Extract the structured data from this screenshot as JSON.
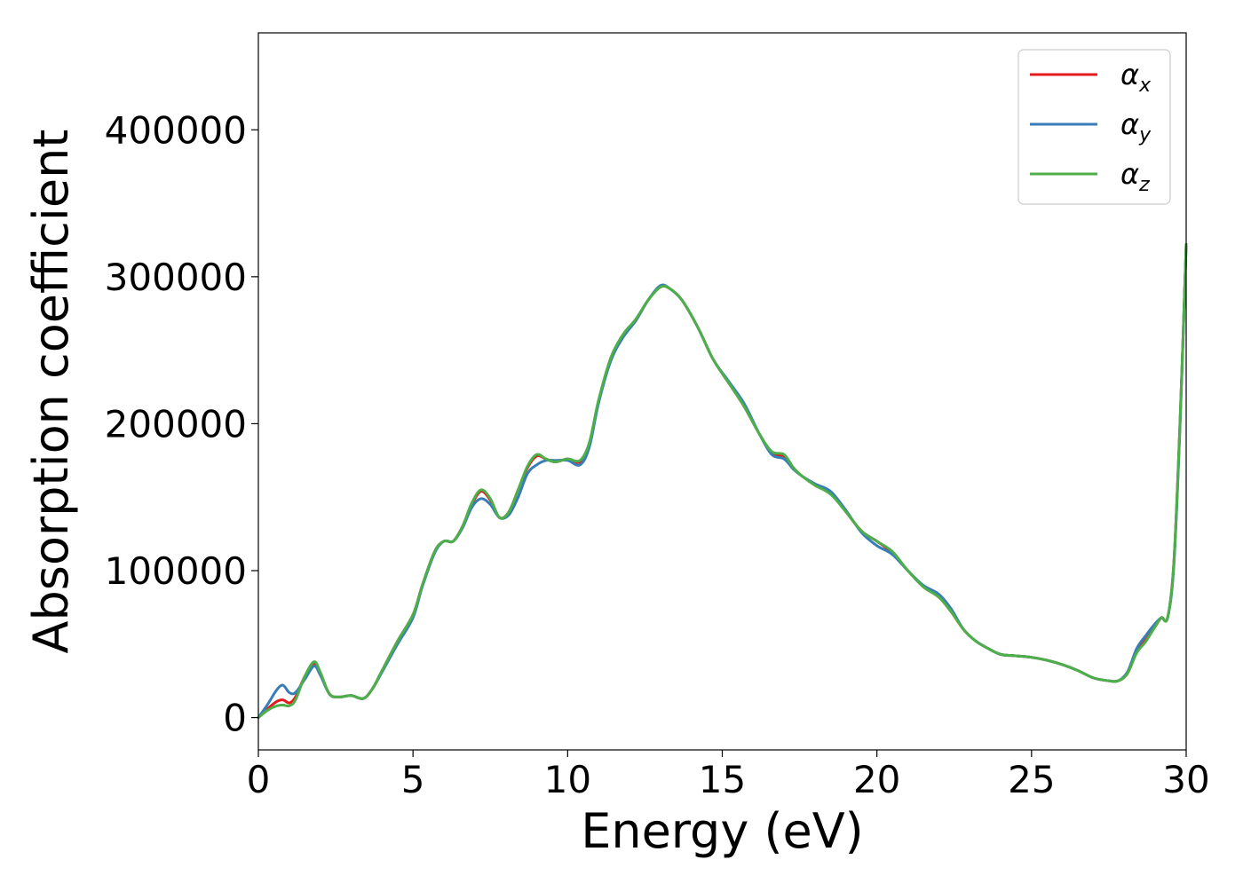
{
  "chart_data": {
    "type": "line",
    "title": "",
    "xlabel": "Energy (eV)",
    "ylabel": "Absorption coefficient",
    "xlim": [
      0,
      30
    ],
    "ylim": [
      -22000,
      466000
    ],
    "xticks": [
      0,
      5,
      10,
      15,
      20,
      25,
      30
    ],
    "xtick_labels": [
      "0",
      "5",
      "10",
      "15",
      "20",
      "25",
      "30"
    ],
    "yticks": [
      0,
      100000,
      200000,
      300000,
      400000
    ],
    "ytick_labels": [
      "0",
      "100000",
      "200000",
      "300000",
      "400000"
    ],
    "grid": false,
    "legend_position": "top-right",
    "series": [
      {
        "name": "α",
        "subscript": "x",
        "color": "#e41a1c",
        "x": [
          0,
          0.3,
          0.6,
          0.8,
          1.0,
          1.2,
          1.5,
          1.8,
          2.0,
          2.3,
          2.6,
          3.0,
          3.4,
          3.7,
          4.0,
          4.5,
          5.0,
          5.3,
          5.7,
          6.0,
          6.3,
          6.6,
          6.9,
          7.2,
          7.5,
          7.8,
          8.1,
          8.4,
          8.7,
          9.0,
          9.3,
          9.6,
          10.0,
          10.4,
          10.7,
          11.0,
          11.4,
          11.8,
          12.2,
          12.6,
          13.0,
          13.3,
          13.7,
          14.2,
          14.7,
          15.2,
          15.7,
          16.2,
          16.6,
          17.0,
          17.3,
          17.6,
          18.0,
          18.5,
          19.0,
          19.5,
          20.0,
          20.5,
          21.0,
          21.5,
          22.0,
          22.4,
          22.8,
          23.2,
          23.6,
          24.0,
          24.5,
          25.0,
          25.5,
          26.0,
          26.5,
          27.0,
          27.5,
          27.8,
          28.1,
          28.4,
          28.7,
          29.0,
          29.2,
          29.4,
          29.6,
          29.8,
          30.0
        ],
        "values": [
          0,
          6000,
          11000,
          12000,
          10000,
          14000,
          28000,
          37000,
          30000,
          16000,
          14000,
          15000,
          13000,
          20000,
          32000,
          52000,
          70000,
          90000,
          113000,
          120000,
          120000,
          130000,
          145000,
          154000,
          148000,
          136000,
          140000,
          155000,
          170000,
          178000,
          176000,
          174000,
          176000,
          174000,
          186000,
          215000,
          245000,
          260000,
          270000,
          284000,
          293000,
          292000,
          284000,
          266000,
          244000,
          228000,
          212000,
          193000,
          180000,
          178000,
          170000,
          164000,
          159000,
          153000,
          140000,
          127000,
          120000,
          112000,
          100000,
          89000,
          82000,
          72000,
          60000,
          52000,
          47000,
          43000,
          42000,
          41000,
          39000,
          36000,
          32000,
          27000,
          25000,
          25000,
          30000,
          45000,
          53000,
          62000,
          68000,
          68000,
          105000,
          200000,
          322000
        ]
      },
      {
        "name": "α",
        "subscript": "y",
        "color": "#377eb8",
        "x": [
          0,
          0.3,
          0.6,
          0.8,
          1.0,
          1.2,
          1.5,
          1.8,
          2.0,
          2.3,
          2.6,
          3.0,
          3.4,
          3.7,
          4.0,
          4.5,
          5.0,
          5.3,
          5.7,
          6.0,
          6.3,
          6.6,
          6.9,
          7.2,
          7.5,
          7.8,
          8.1,
          8.4,
          8.7,
          9.0,
          9.3,
          9.6,
          10.0,
          10.4,
          10.7,
          11.0,
          11.4,
          11.8,
          12.2,
          12.6,
          13.0,
          13.3,
          13.7,
          14.2,
          14.7,
          15.2,
          15.7,
          16.2,
          16.6,
          17.0,
          17.3,
          17.6,
          18.0,
          18.5,
          19.0,
          19.5,
          20.0,
          20.5,
          21.0,
          21.5,
          22.0,
          22.4,
          22.8,
          23.2,
          23.6,
          24.0,
          24.5,
          25.0,
          25.5,
          26.0,
          26.5,
          27.0,
          27.5,
          27.8,
          28.1,
          28.4,
          28.7,
          29.0,
          29.2,
          29.4,
          29.6,
          29.8,
          30.0
        ],
        "values": [
          0,
          9000,
          19000,
          22000,
          17000,
          17000,
          26000,
          35000,
          29000,
          16000,
          14000,
          15000,
          13000,
          20000,
          31000,
          50000,
          68000,
          89000,
          112000,
          120000,
          120000,
          129000,
          143000,
          149000,
          145000,
          136000,
          138000,
          150000,
          166000,
          172000,
          175000,
          175000,
          175000,
          172000,
          184000,
          214000,
          243000,
          259000,
          270000,
          284000,
          294000,
          292000,
          284000,
          266000,
          244000,
          229000,
          214000,
          193000,
          179000,
          176000,
          169000,
          164000,
          159000,
          154000,
          141000,
          126000,
          117000,
          111000,
          100000,
          90000,
          84000,
          74000,
          60000,
          52000,
          47000,
          43000,
          42000,
          41000,
          39000,
          36000,
          32000,
          27000,
          25000,
          25000,
          31000,
          47000,
          56000,
          64000,
          68000,
          68000,
          103000,
          198000,
          322000
        ]
      },
      {
        "name": "α",
        "subscript": "z",
        "color": "#4daf4a",
        "x": [
          0,
          0.3,
          0.6,
          0.8,
          1.0,
          1.2,
          1.5,
          1.8,
          2.0,
          2.3,
          2.6,
          3.0,
          3.4,
          3.7,
          4.0,
          4.5,
          5.0,
          5.3,
          5.7,
          6.0,
          6.3,
          6.6,
          6.9,
          7.2,
          7.5,
          7.8,
          8.1,
          8.4,
          8.7,
          9.0,
          9.3,
          9.6,
          10.0,
          10.4,
          10.7,
          11.0,
          11.4,
          11.8,
          12.2,
          12.6,
          13.0,
          13.3,
          13.7,
          14.2,
          14.7,
          15.2,
          15.7,
          16.2,
          16.6,
          17.0,
          17.3,
          17.6,
          18.0,
          18.5,
          19.0,
          19.5,
          20.0,
          20.5,
          21.0,
          21.5,
          22.0,
          22.4,
          22.8,
          23.2,
          23.6,
          24.0,
          24.5,
          25.0,
          25.5,
          26.0,
          26.5,
          27.0,
          27.5,
          27.8,
          28.1,
          28.4,
          28.7,
          29.0,
          29.2,
          29.4,
          29.6,
          29.8,
          30.0
        ],
        "values": [
          0,
          5000,
          8000,
          8500,
          8000,
          12000,
          28000,
          38000,
          31000,
          16000,
          14000,
          15000,
          13000,
          20000,
          32000,
          52000,
          70000,
          90000,
          113000,
          120000,
          120000,
          130000,
          146000,
          155000,
          149000,
          136000,
          140000,
          155000,
          171000,
          179000,
          176000,
          174000,
          176000,
          175000,
          187000,
          216000,
          245000,
          261000,
          271000,
          284000,
          293000,
          292000,
          284000,
          266000,
          244000,
          228000,
          212000,
          193000,
          181000,
          179000,
          170000,
          164000,
          158000,
          152000,
          140000,
          127000,
          120000,
          113000,
          100000,
          89000,
          82000,
          72000,
          60000,
          52000,
          47000,
          43000,
          42000,
          41000,
          39000,
          36000,
          32000,
          27000,
          25000,
          25000,
          30000,
          44000,
          52000,
          62000,
          68000,
          68000,
          105000,
          201000,
          322000
        ]
      }
    ]
  }
}
